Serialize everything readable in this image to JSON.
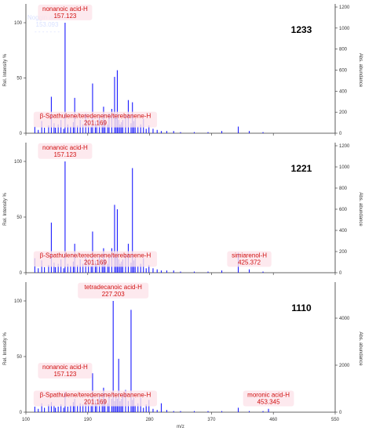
{
  "axes": {
    "x_label": "m/z",
    "y_left_label": "Rel. Intensity %",
    "y_right_label": "Abs. abundance"
  },
  "colors": {
    "bars": "#1a1aff",
    "annotation": "#d01010",
    "axis": "#333333",
    "label_bg": "#fde4ea"
  },
  "chart_data": [
    {
      "type": "bar",
      "sample_id": "1233",
      "xlim": [
        100,
        550
      ],
      "x_ticks": [
        100,
        190,
        280,
        370,
        460,
        550
      ],
      "show_x_tick_labels": false,
      "ylim_left": [
        0,
        100
      ],
      "y_left_ticks": [
        0,
        50,
        100
      ],
      "ylim_right": [
        0,
        1200
      ],
      "y_right_ticks": [
        0,
        200,
        400,
        600,
        800,
        1000,
        1200
      ],
      "x": [
        113,
        118,
        123,
        127,
        133,
        137,
        141,
        143,
        147,
        151,
        155,
        157,
        161,
        165,
        169,
        171,
        175,
        179,
        183,
        187,
        191,
        195,
        197,
        201,
        203,
        207,
        211,
        213,
        215,
        219,
        221,
        225,
        229,
        231,
        233,
        235,
        237,
        239,
        241,
        245,
        249,
        253,
        255,
        257,
        259,
        263,
        267,
        271,
        275,
        279,
        285,
        291,
        297,
        305,
        315,
        325,
        345,
        365,
        385,
        409,
        425,
        445
      ],
      "values": [
        6,
        3,
        11,
        5,
        7,
        33,
        9,
        5,
        8,
        12,
        4,
        100,
        8,
        6,
        10,
        32,
        7,
        12,
        8,
        18,
        10,
        6,
        45,
        11,
        8,
        15,
        9,
        24,
        12,
        8,
        18,
        22,
        51,
        14,
        57,
        12,
        8,
        10,
        12,
        16,
        30,
        9,
        28,
        11,
        13,
        6,
        8,
        13,
        4,
        7,
        4,
        3,
        2,
        2,
        2,
        1,
        1,
        1,
        2,
        6,
        2,
        1
      ],
      "annotations": [
        {
          "name": "nonanoic acid-H",
          "mz": "157.123",
          "at_x": 157,
          "label_y": 110
        },
        {
          "name": "β-Spathulene/teredenene/terebanene-H",
          "mz": "201.169",
          "at_x": 201,
          "label_y": 13
        }
      ],
      "hidden_label_lines": [
        "Noggin acid H",
        "153.093",
        "- - - - - - -"
      ]
    },
    {
      "type": "bar",
      "sample_id": "1221",
      "xlim": [
        100,
        550
      ],
      "x_ticks": [
        100,
        190,
        280,
        370,
        460,
        550
      ],
      "show_x_tick_labels": false,
      "ylim_left": [
        0,
        100
      ],
      "y_left_ticks": [
        0,
        50,
        100
      ],
      "ylim_right": [
        0,
        1200
      ],
      "y_right_ticks": [
        0,
        200,
        400,
        600,
        800,
        1000,
        1200
      ],
      "x": [
        113,
        118,
        123,
        127,
        133,
        137,
        141,
        143,
        147,
        151,
        155,
        157,
        161,
        165,
        169,
        171,
        175,
        179,
        183,
        187,
        191,
        195,
        197,
        201,
        203,
        207,
        211,
        213,
        215,
        219,
        221,
        225,
        229,
        231,
        233,
        235,
        237,
        239,
        241,
        245,
        249,
        253,
        255,
        257,
        259,
        263,
        267,
        271,
        275,
        279,
        285,
        291,
        297,
        305,
        315,
        325,
        345,
        365,
        385,
        409,
        425,
        445
      ],
      "values": [
        13,
        4,
        11,
        5,
        7,
        45,
        9,
        5,
        8,
        12,
        4,
        100,
        8,
        6,
        10,
        26,
        7,
        12,
        8,
        14,
        10,
        6,
        37,
        11,
        8,
        15,
        9,
        22,
        12,
        8,
        14,
        22,
        61,
        14,
        57,
        12,
        8,
        10,
        12,
        16,
        26,
        9,
        94,
        11,
        13,
        6,
        8,
        13,
        4,
        7,
        4,
        3,
        2,
        2,
        2,
        1,
        1,
        1,
        2,
        18,
        3,
        1
      ],
      "annotations": [
        {
          "name": "nonanoic acid-H",
          "mz": "157.123",
          "at_x": 157,
          "label_y": 110
        },
        {
          "name": "β-Spathulene/teredenene/terebanene-H",
          "mz": "201.169",
          "at_x": 201,
          "label_y": 13
        },
        {
          "name": "simiarenol-H",
          "mz": "425.372",
          "at_x": 425,
          "label_y": 13
        }
      ]
    },
    {
      "type": "bar",
      "sample_id": "1110",
      "xlim": [
        100,
        550
      ],
      "x_ticks": [
        100,
        190,
        280,
        370,
        460,
        550
      ],
      "show_x_tick_labels": true,
      "ylim_left": [
        0,
        100
      ],
      "y_left_ticks": [
        0,
        50,
        100
      ],
      "ylim_right": [
        0,
        5400
      ],
      "y_right_ticks": [
        0,
        2000,
        4000
      ],
      "x": [
        113,
        118,
        123,
        127,
        133,
        137,
        141,
        143,
        147,
        151,
        155,
        157,
        161,
        165,
        169,
        171,
        175,
        179,
        183,
        187,
        191,
        195,
        197,
        201,
        203,
        207,
        211,
        213,
        215,
        219,
        221,
        225,
        227,
        229,
        231,
        233,
        235,
        237,
        239,
        241,
        245,
        249,
        253,
        255,
        257,
        259,
        263,
        267,
        271,
        275,
        279,
        285,
        291,
        297,
        305,
        315,
        325,
        345,
        365,
        385,
        409,
        425,
        445,
        453
      ],
      "values": [
        5,
        3,
        8,
        4,
        7,
        9,
        6,
        4,
        5,
        7,
        4,
        18,
        5,
        6,
        9,
        12,
        6,
        8,
        7,
        10,
        8,
        6,
        35,
        11,
        8,
        15,
        9,
        22,
        12,
        8,
        14,
        12,
        100,
        10,
        14,
        12,
        48,
        10,
        12,
        16,
        20,
        10,
        92,
        11,
        13,
        6,
        8,
        13,
        4,
        7,
        11,
        3,
        2,
        8,
        2,
        1,
        1,
        1,
        1,
        1,
        4,
        1,
        1,
        3
      ],
      "annotations": [
        {
          "name": "tetradecanoic acid-H",
          "mz": "227.203",
          "at_x": 227,
          "label_y": 110
        },
        {
          "name": "nonanoic acid-H",
          "mz": "157.123",
          "at_x": 157,
          "label_y": 38
        },
        {
          "name": "β-Spathulene/teredenene/terebanene-H",
          "mz": "201.169",
          "at_x": 201,
          "label_y": 13
        },
        {
          "name": "moronic acid-H",
          "mz": "453.345",
          "at_x": 453,
          "label_y": 13
        }
      ]
    }
  ]
}
